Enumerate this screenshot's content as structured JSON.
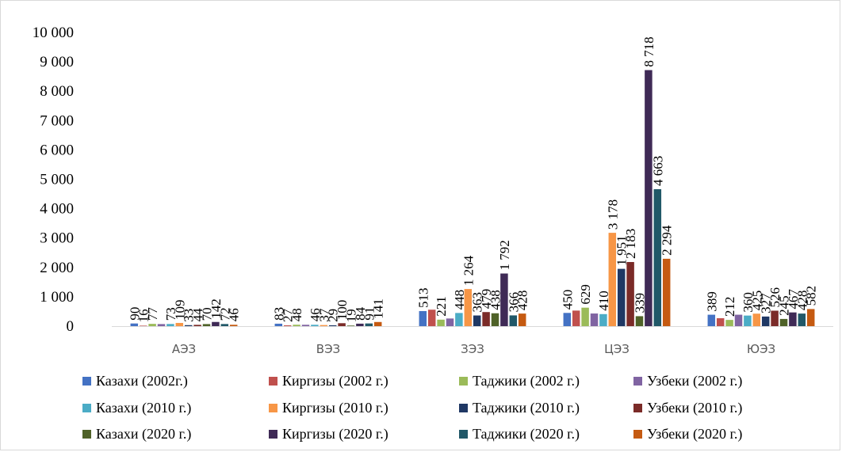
{
  "chart_data": {
    "type": "bar",
    "categories": [
      "АЭЗ",
      "ВЭЗ",
      "ЗЭЗ",
      "ЦЭЗ",
      "ЮЭЗ"
    ],
    "ylim": [
      0,
      10000
    ],
    "yticks": [
      "0",
      "1 000",
      "2 000",
      "3 000",
      "4 000",
      "5 000",
      "6 000",
      "7 000",
      "8 000",
      "9 000",
      "10 000"
    ],
    "grid": false,
    "legend_position": "bottom",
    "series": [
      {
        "name": "Казахи (2002г.)",
        "color": "#4472C4",
        "values": [
          90,
          83,
          513,
          450,
          389
        ],
        "labels": [
          "90",
          "83",
          "513",
          "450",
          "389"
        ]
      },
      {
        "name": "Киргизы (2002 г.)",
        "color": "#C0504D",
        "values": [
          16,
          27,
          560,
          530,
          270
        ],
        "labels": [
          "16",
          "27",
          "",
          "",
          ""
        ]
      },
      {
        "name": "Таджики (2002 г.)",
        "color": "#9BBB59",
        "values": [
          77,
          48,
          221,
          629,
          212
        ],
        "labels": [
          "77",
          "48",
          "221",
          "629",
          "212"
        ]
      },
      {
        "name": "Узбеки (2002 г.)",
        "color": "#8064A2",
        "values": [
          70,
          46,
          260,
          430,
          389
        ],
        "labels": [
          "",
          "",
          "",
          "",
          ""
        ]
      },
      {
        "name": "Казахи (2010 г.)",
        "color": "#4BACC6",
        "values": [
          73,
          46,
          448,
          410,
          360
        ],
        "labels": [
          "73",
          "46",
          "448",
          "410",
          "360"
        ]
      },
      {
        "name": "Киргизы (2010 г.)",
        "color": "#F79646",
        "values": [
          109,
          37,
          1264,
          3178,
          425
        ],
        "labels": [
          "109",
          "37",
          "1 264",
          "3 178",
          "425"
        ]
      },
      {
        "name": "Таджики (2010 г.)",
        "color": "#1F3864",
        "values": [
          33,
          29,
          363,
          1951,
          327
        ],
        "labels": [
          "33",
          "29",
          "363",
          "1 951",
          "327"
        ]
      },
      {
        "name": "Узбеки (2010 г.)",
        "color": "#7B2B28",
        "values": [
          44,
          100,
          479,
          2183,
          526
        ],
        "labels": [
          "44",
          "100",
          "479",
          "2 183",
          "526"
        ]
      },
      {
        "name": "Казахи (2020 г.)",
        "color": "#4F6228",
        "values": [
          70,
          19,
          438,
          339,
          245
        ],
        "labels": [
          "70",
          "19",
          "438",
          "339",
          "245"
        ]
      },
      {
        "name": "Киргизы (2020 г.)",
        "color": "#3F2A56",
        "values": [
          142,
          84,
          1792,
          8718,
          467
        ],
        "labels": [
          "142",
          "84",
          "1 792",
          "8 718",
          "467"
        ]
      },
      {
        "name": "Таджики (2020 г.)",
        "color": "#215868",
        "values": [
          72,
          91,
          366,
          4663,
          428
        ],
        "labels": [
          "72",
          "91",
          "366",
          "4 663",
          "428"
        ]
      },
      {
        "name": "Узбеки (2020 г.)",
        "color": "#C55A11",
        "values": [
          46,
          141,
          428,
          2294,
          582
        ],
        "labels": [
          "46",
          "141",
          "428",
          "2 294",
          "582"
        ]
      }
    ]
  }
}
